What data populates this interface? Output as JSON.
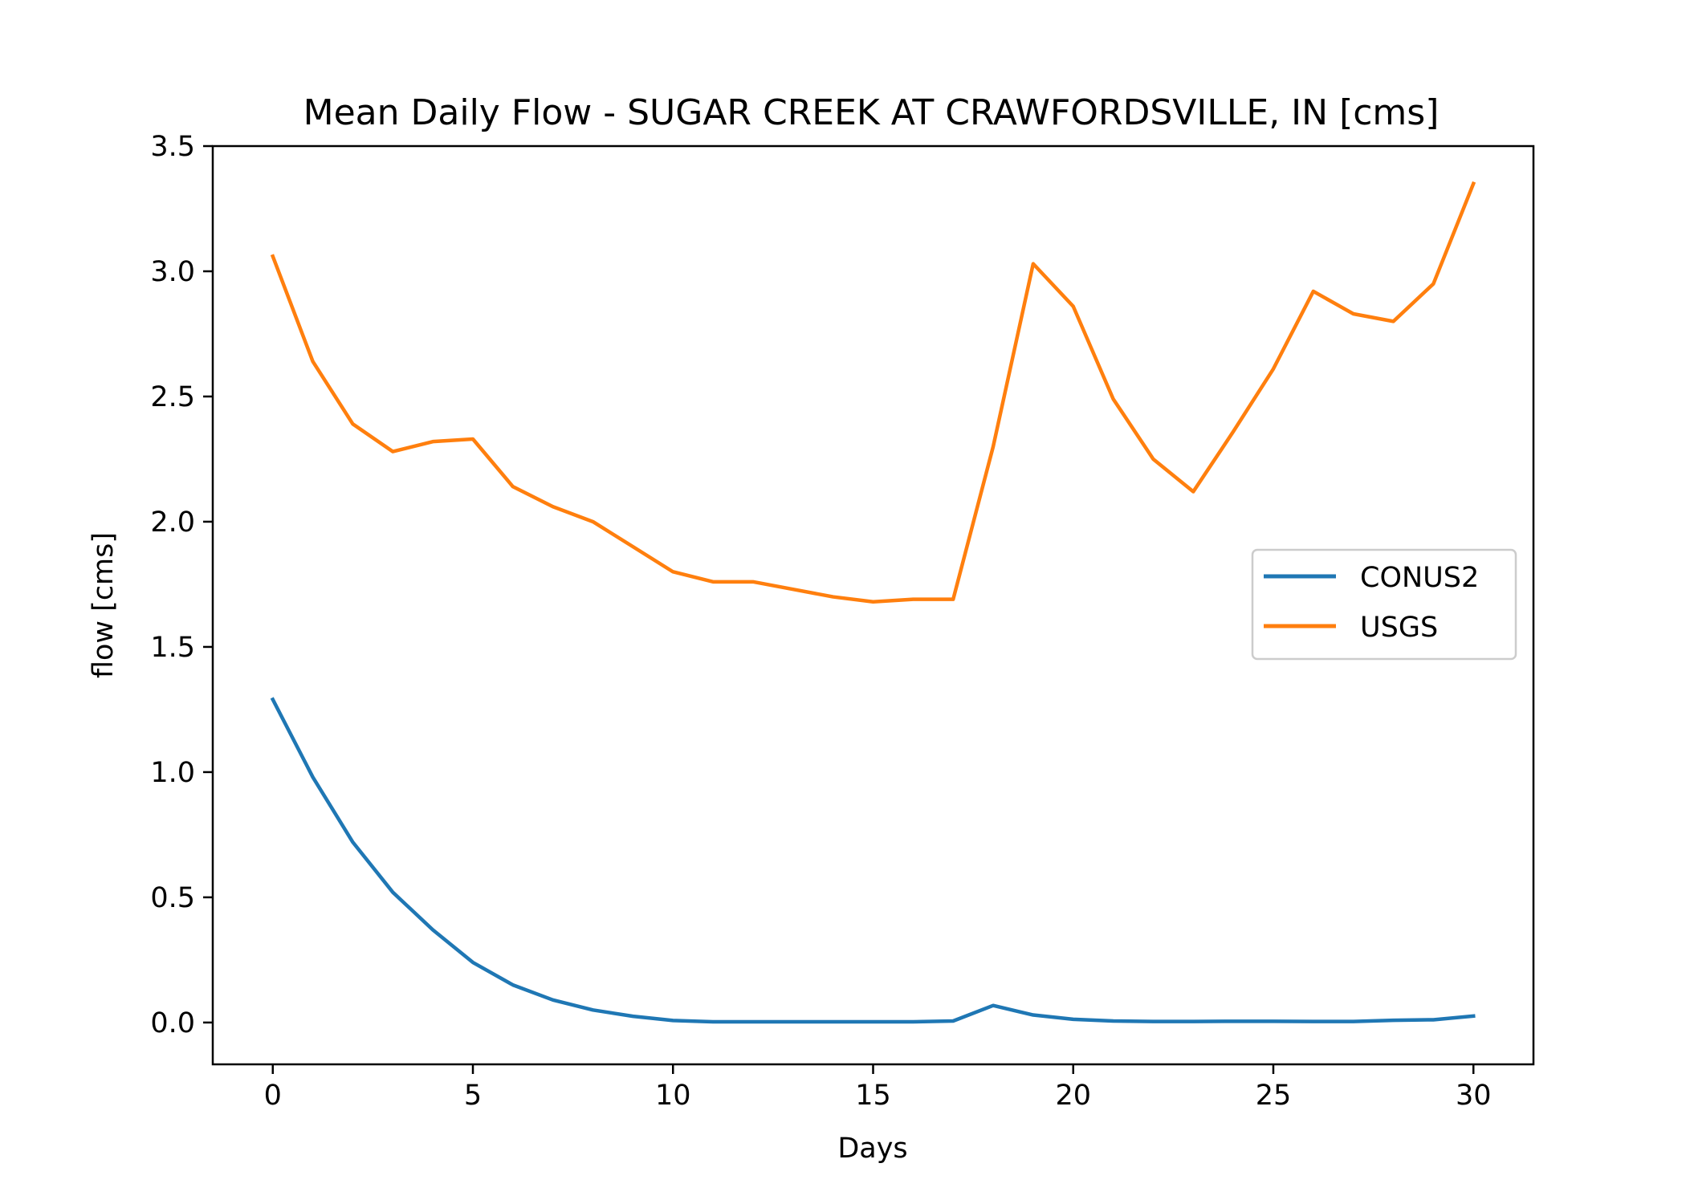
{
  "chart_data": {
    "type": "line",
    "title": "Mean Daily Flow - SUGAR CREEK AT CRAWFORDSVILLE, IN [cms]",
    "xlabel": "Days",
    "ylabel": "flow [cms]",
    "xlim": [
      -1.5,
      31.5
    ],
    "ylim": [
      -0.167,
      3.5
    ],
    "xticks": [
      0,
      5,
      10,
      15,
      20,
      25,
      30
    ],
    "xtick_labels": [
      "0",
      "5",
      "10",
      "15",
      "20",
      "25",
      "30"
    ],
    "yticks": [
      0.0,
      0.5,
      1.0,
      1.5,
      2.0,
      2.5,
      3.0,
      3.5
    ],
    "ytick_labels": [
      "0.0",
      "0.5",
      "1.0",
      "1.5",
      "2.0",
      "2.5",
      "3.0",
      "3.5"
    ],
    "grid": false,
    "legend_position": "center-right",
    "x": [
      0,
      1,
      2,
      3,
      4,
      5,
      6,
      7,
      8,
      9,
      10,
      11,
      12,
      13,
      14,
      15,
      16,
      17,
      18,
      19,
      20,
      21,
      22,
      23,
      24,
      25,
      26,
      27,
      28,
      29,
      30
    ],
    "series": [
      {
        "name": "CONUS2",
        "color": "#1f77b4",
        "values": [
          1.29,
          0.98,
          0.72,
          0.52,
          0.37,
          0.24,
          0.15,
          0.09,
          0.05,
          0.025,
          0.008,
          0.003,
          0.003,
          0.003,
          0.003,
          0.003,
          0.003,
          0.006,
          0.068,
          0.03,
          0.013,
          0.006,
          0.004,
          0.004,
          0.005,
          0.005,
          0.004,
          0.004,
          0.009,
          0.011,
          0.026
        ]
      },
      {
        "name": "USGS",
        "color": "#ff7f0e",
        "values": [
          3.06,
          2.64,
          2.39,
          2.28,
          2.32,
          2.33,
          2.14,
          2.06,
          2.0,
          1.9,
          1.8,
          1.76,
          1.76,
          1.73,
          1.7,
          1.68,
          1.69,
          1.69,
          2.3,
          3.03,
          2.86,
          2.49,
          2.25,
          2.12,
          2.36,
          2.61,
          2.92,
          2.83,
          2.8,
          2.95,
          3.35
        ]
      }
    ]
  }
}
